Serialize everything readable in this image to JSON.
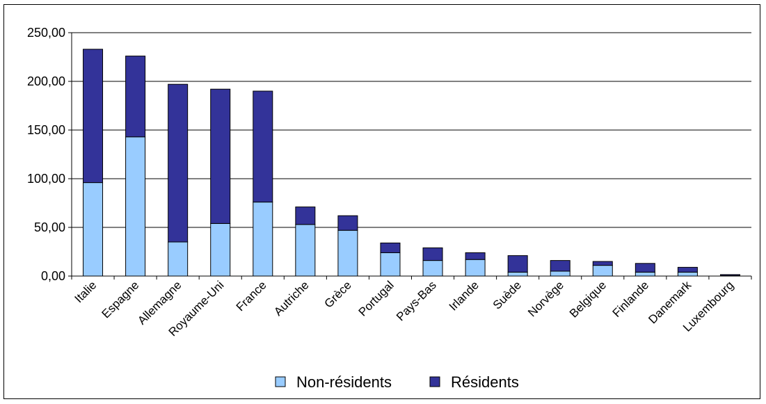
{
  "chart_data": {
    "type": "bar",
    "stacked": true,
    "categories": [
      "Italie",
      "Espagne",
      "Allemagne",
      "Royaume-Uni",
      "France",
      "Autriche",
      "Grèce",
      "Portugal",
      "Pays-Bas",
      "Irlande",
      "Suède",
      "Norvège",
      "Belgique",
      "Finlande",
      "Danemark",
      "Luxembourg"
    ],
    "series": [
      {
        "name": "Non-résidents",
        "color": "#99ccff",
        "values": [
          96,
          143,
          35,
          54,
          76,
          53,
          47,
          24,
          16,
          17,
          4,
          5,
          11,
          4,
          4,
          0.5
        ]
      },
      {
        "name": "Résidents",
        "color": "#333399",
        "values": [
          137,
          83,
          162,
          138,
          114,
          18,
          15,
          10,
          13,
          7,
          17,
          11,
          4,
          9,
          5,
          1
        ]
      }
    ],
    "ylim": [
      0,
      250
    ],
    "yticks": [
      "0,00",
      "50,00",
      "100,00",
      "150,00",
      "200,00",
      "250,00"
    ],
    "grid": true,
    "legend_position": "bottom"
  }
}
